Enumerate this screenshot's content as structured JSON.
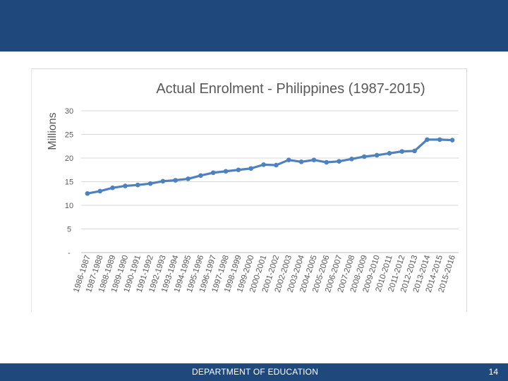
{
  "slide": {
    "footer_text": "DEPARTMENT OF EDUCATION",
    "page_number": "14",
    "header_color": "#1f497d"
  },
  "chart_data": {
    "type": "line",
    "title": "Actual Enrolment - Philippines  (1987-2015)",
    "xlabel": "",
    "ylabel": "Millions",
    "ylim": [
      0,
      30
    ],
    "yticks": [
      0,
      5,
      10,
      15,
      20,
      25,
      30
    ],
    "ytick_labels": [
      "-",
      "5",
      "10",
      "15",
      "20",
      "25",
      "30"
    ],
    "grid": true,
    "line_color": "#4f81bd",
    "categories": [
      "1986-1987",
      "1987-1988",
      "1988-1989",
      "1989-1990",
      "1990-1991",
      "1991-1992",
      "1992-1993",
      "1993-1994",
      "1994-1995",
      "1995-1996",
      "1996-1997",
      "1997-1998",
      "1998-1999",
      "1999-2000",
      "2000-2001",
      "2001-2002",
      "2002-2003",
      "2003-2004",
      "2004-2005",
      "2005-2006",
      "2006-2007",
      "2007-2008",
      "2008-2009",
      "2009-2010",
      "2010-2011",
      "2011-2012",
      "2012-2013",
      "2013-2014",
      "2014-2015",
      "2015-2016"
    ],
    "series": [
      {
        "name": "Actual Enrolment",
        "values": [
          12.5,
          13.0,
          13.7,
          14.1,
          14.3,
          14.6,
          15.1,
          15.3,
          15.6,
          16.3,
          16.9,
          17.2,
          17.5,
          17.8,
          18.6,
          18.5,
          19.6,
          19.2,
          19.6,
          19.1,
          19.3,
          19.8,
          20.3,
          20.6,
          21.0,
          21.4,
          21.5,
          23.9,
          23.9,
          23.8
        ]
      }
    ]
  }
}
